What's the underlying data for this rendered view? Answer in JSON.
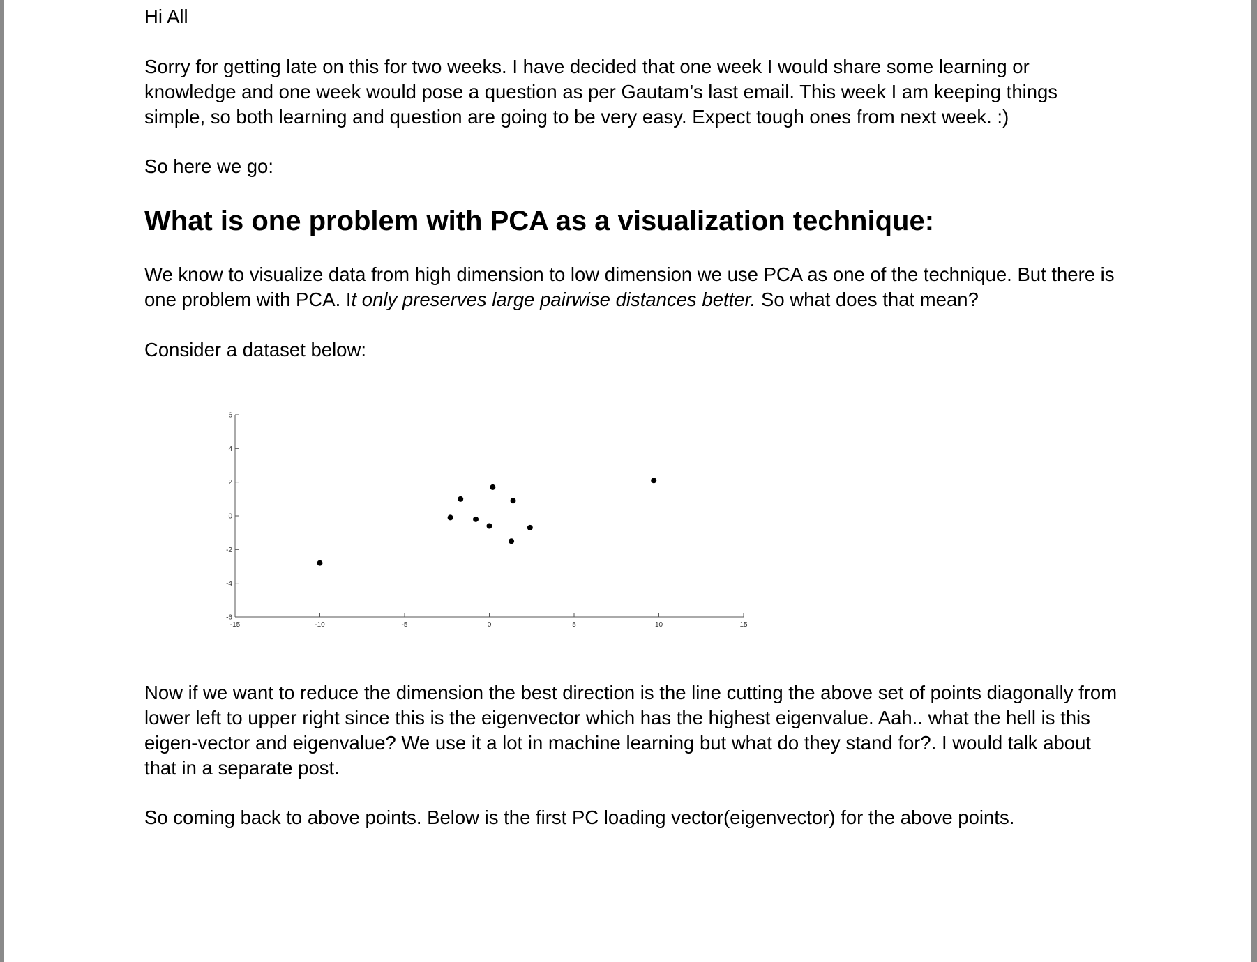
{
  "document": {
    "greeting": "Hi All",
    "intro": "Sorry for getting late on this for two weeks. I have decided that one week I would share some learning or knowledge and one week would pose a question as per Gautam’s last email. This week I am keeping things simple, so both learning and question are going to be very easy. Expect tough ones from next week. :)",
    "here_we_go": "So here we go:",
    "heading": "What is one problem with PCA as a visualization technique:",
    "pca_para": {
      "lead": "We know to visualize data from high dimension to low dimension we use PCA as one of the technique. But there is one problem with PCA. I",
      "emphasis": "t only preserves large pairwise distances better.",
      "tail": " So what does that mean?"
    },
    "consider": "Consider a dataset below:",
    "reduce_para": "Now if we want to reduce the dimension the best direction is the line cutting the above set of points diagonally from lower left to upper right since this is the eigenvector which has the highest eigenvalue. Aah.. what the hell is this eigen-vector and eigenvalue? We use it a lot in machine learning but what do they stand for?. I would talk about that in a separate post.",
    "coming_back": "So coming back to above points. Below is the first PC loading vector(eigenvector) for the above points."
  },
  "chart_data": {
    "type": "scatter",
    "xlim": [
      -15,
      15
    ],
    "ylim": [
      -6,
      6
    ],
    "x_ticks": [
      -15,
      -10,
      -5,
      0,
      5,
      10,
      15
    ],
    "y_ticks": [
      -6,
      -4,
      -2,
      0,
      2,
      4,
      6
    ],
    "x_tick_labels": [
      "-15",
      "-10",
      "-5",
      "0",
      "5",
      "10",
      "15"
    ],
    "y_tick_labels": [
      "-6",
      "-4",
      "-2",
      "0",
      "2",
      "4",
      "6"
    ],
    "grid": false,
    "points": [
      {
        "x": -10.0,
        "y": -2.8
      },
      {
        "x": -2.3,
        "y": -0.1
      },
      {
        "x": -1.7,
        "y": 1.0
      },
      {
        "x": -0.8,
        "y": -0.2
      },
      {
        "x": 0.0,
        "y": -0.6
      },
      {
        "x": 0.2,
        "y": 1.7
      },
      {
        "x": 1.4,
        "y": 0.9
      },
      {
        "x": 1.3,
        "y": -1.5
      },
      {
        "x": 2.4,
        "y": -0.7
      },
      {
        "x": 9.7,
        "y": 2.1
      }
    ],
    "marker_color": "#000000",
    "axis_color": "#555555"
  }
}
